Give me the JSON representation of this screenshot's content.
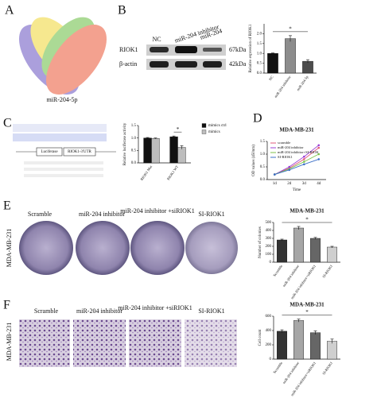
{
  "panel_labels": [
    "A",
    "B",
    "C",
    "D",
    "E",
    "F"
  ],
  "venn": {
    "label": "miR-204-5p"
  },
  "blot": {
    "lanes": [
      "NC",
      "miR-204 inhibitor",
      "miR-204"
    ],
    "rows": [
      "RIOK1",
      "β-actin"
    ],
    "sizes": [
      "67kDa",
      "42kDa"
    ]
  },
  "reporter": {
    "parts": [
      "Luciferase",
      "RIOK1-3'UTR"
    ]
  },
  "images": {
    "groups": [
      "Scramble",
      "miR-204 inhibitor",
      "miR-204 inhibitor +siRIOK1",
      "SI-RIOK1"
    ],
    "cell_line": "MDA-MB-231"
  },
  "chart_data": [
    {
      "type": "bar",
      "ylabel": "Relative expression of RIOK1",
      "categories": [
        "NC",
        "miR-204 inhibitor",
        "miR-204-5p"
      ],
      "values": [
        1.0,
        1.75,
        0.6
      ],
      "errors": [
        0.02,
        0.15,
        0.08
      ],
      "colors": [
        "#111111",
        "#8c8c8c",
        "#4d4d4d"
      ],
      "annotation": "*",
      "ylim": [
        0,
        2.5
      ],
      "yticks": [
        {
          "value": 0,
          "label": "0.0"
        },
        0.5,
        {
          "value": 1,
          "label": "1.0"
        },
        1.5,
        {
          "value": 2,
          "label": "2.0"
        }
      ]
    },
    {
      "type": "bar",
      "ylabel": "Relative luciferase activity",
      "categories": [
        "RIOK1 Mut",
        "RIOK1 WT"
      ],
      "series": [
        {
          "name": "mimics ctrl",
          "color": "#111111",
          "values": [
            1.0,
            1.05
          ],
          "errors": [
            0.02,
            0.03
          ]
        },
        {
          "name": "mimics",
          "color": "#bdbdbd",
          "values": [
            0.98,
            0.62
          ],
          "errors": [
            0.02,
            0.07
          ]
        }
      ],
      "annotation": "*",
      "ylim": [
        0,
        1.5
      ],
      "yticks": [
        {
          "value": 0,
          "label": "0.0"
        },
        0.5,
        {
          "value": 1,
          "label": "1.0"
        },
        1.5
      ]
    },
    {
      "type": "line",
      "title": "MDA-MB-231",
      "xlabel": "Time",
      "ylabel": "OD values (450nm)",
      "categories": [
        "1d",
        "2d",
        "3d",
        "4d"
      ],
      "series": [
        {
          "name": "scramble",
          "color": "#e05a7a",
          "values": [
            0.2,
            0.45,
            0.8,
            1.25
          ]
        },
        {
          "name": "miR-204 inhibitor",
          "color": "#9b3fd6",
          "values": [
            0.2,
            0.5,
            0.9,
            1.35
          ]
        },
        {
          "name": "miR-204 inhibitor+SI-RIOK",
          "color": "#7cc24a",
          "values": [
            0.2,
            0.42,
            0.7,
            1.0
          ]
        },
        {
          "name": "SI-RIOK1",
          "color": "#3b6fc7",
          "values": [
            0.2,
            0.38,
            0.6,
            0.8
          ]
        }
      ],
      "ylim": [
        0,
        1.5
      ],
      "yticks": [
        {
          "value": 0,
          "label": "0.0"
        },
        0.5,
        {
          "value": 1,
          "label": "1.0"
        },
        1.5
      ]
    },
    {
      "type": "bar",
      "title": "MDA-MB-231",
      "ylabel": "Number of colonies",
      "categories": [
        "Scramble",
        "miR-204 inhibitor",
        "miR-204 inhibitor+siRIOK1",
        "SI-RIOK1"
      ],
      "values": [
        280,
        430,
        300,
        190
      ],
      "errors": [
        10,
        20,
        12,
        10
      ],
      "colors": [
        "#333333",
        "#a6a6a6",
        "#666666",
        "#cfcfcf"
      ],
      "annotation": "*",
      "ylim": [
        0,
        500
      ],
      "yticks": [
        0,
        100,
        200,
        300,
        400,
        500
      ]
    },
    {
      "type": "bar",
      "title": "MDA-MB-231",
      "ylabel": "Cell count",
      "categories": [
        "Scramble",
        "miR-204 inhibitor",
        "miR-204 inhibitor+siRIOK1",
        "SI-RIOK1"
      ],
      "values": [
        390,
        540,
        370,
        250
      ],
      "errors": [
        20,
        20,
        25,
        30
      ],
      "colors": [
        "#333333",
        "#a6a6a6",
        "#666666",
        "#cfcfcf"
      ],
      "annotation": "*",
      "ylim": [
        0,
        600
      ],
      "yticks": [
        0,
        200,
        400,
        600
      ]
    }
  ]
}
